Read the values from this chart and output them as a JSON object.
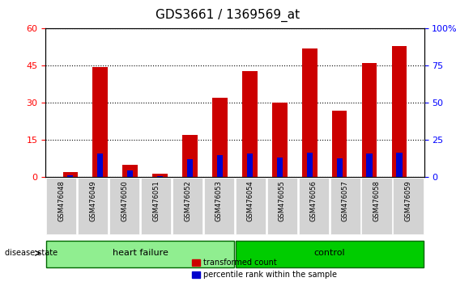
{
  "title": "GDS3661 / 1369569_at",
  "samples": [
    "GSM476048",
    "GSM476049",
    "GSM476050",
    "GSM476051",
    "GSM476052",
    "GSM476053",
    "GSM476054",
    "GSM476055",
    "GSM476056",
    "GSM476057",
    "GSM476058",
    "GSM476059"
  ],
  "transformed_count": [
    2.0,
    44.5,
    5.0,
    1.5,
    17.0,
    32.0,
    43.0,
    30.0,
    52.0,
    27.0,
    46.0,
    53.0
  ],
  "percentile_rank": [
    1.5,
    16.0,
    4.5,
    1.0,
    12.0,
    15.0,
    16.0,
    13.5,
    16.5,
    13.0,
    16.0,
    16.5
  ],
  "groups": [
    {
      "label": "heart failure",
      "start": 0,
      "end": 6,
      "color": "#90ee90"
    },
    {
      "label": "control",
      "start": 6,
      "end": 12,
      "color": "#00cc00"
    }
  ],
  "disease_state_label": "disease state",
  "ylim_left": [
    0,
    60
  ],
  "ylim_right": [
    0,
    100
  ],
  "yticks_left": [
    0,
    15,
    30,
    45,
    60
  ],
  "yticks_right": [
    0,
    25,
    50,
    75,
    100
  ],
  "bar_color_red": "#cc0000",
  "bar_color_blue": "#0000cc",
  "bar_width": 0.5,
  "grid_color": "black",
  "grid_style": "dotted",
  "legend_red_label": "transformed count",
  "legend_blue_label": "percentile rank within the sample",
  "tick_label_bg": "#d3d3d3",
  "group_border_color": "#006600"
}
